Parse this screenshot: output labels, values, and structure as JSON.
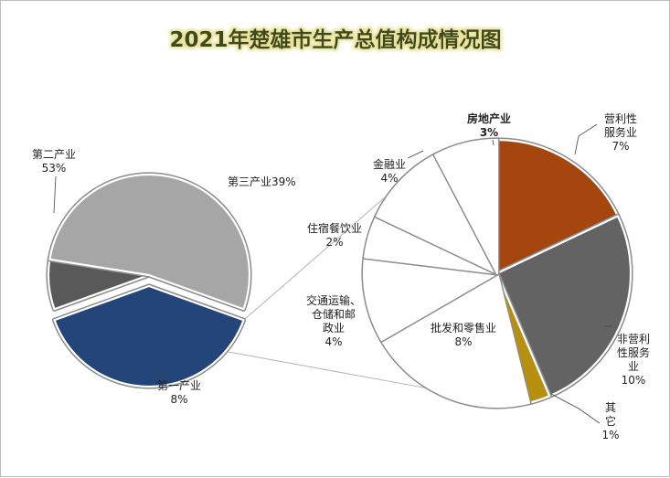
{
  "chart_data": {
    "type": "pie",
    "title": "2021年楚雄市生产总值构成情况图",
    "main_pie": {
      "slices": [
        {
          "name": "第三产业",
          "label_text": "第三产业39%",
          "value": 39,
          "color": "#24457a"
        },
        {
          "name": "第一产业",
          "label_lines": [
            "第一产业",
            "8%"
          ],
          "value": 8,
          "color": "#595959"
        },
        {
          "name": "第二产业",
          "label_lines": [
            "第二产业",
            "53%"
          ],
          "value": 53,
          "color": "#a6a6a6"
        }
      ]
    },
    "breakdown_pie": {
      "parent": "第三产业",
      "slices": [
        {
          "name": "营利性服务业",
          "label_lines": [
            "营利性",
            "服务业",
            "7%"
          ],
          "value": 7,
          "color": "#a5460f"
        },
        {
          "name": "非营利性服务业",
          "label_lines": [
            "非营利",
            "性服务",
            "业",
            "10%"
          ],
          "value": 10,
          "color": "#636363"
        },
        {
          "name": "其它",
          "label_lines": [
            "其",
            "它",
            "1%"
          ],
          "value": 1,
          "color": "#b8900f"
        },
        {
          "name": "批发和零售业",
          "label_lines": [
            "批发和零售业",
            "8%"
          ],
          "value": 8,
          "color": "#ffffff"
        },
        {
          "name": "交通运输、仓储和邮政业",
          "label_lines": [
            "交通运输、",
            "仓储和邮",
            "政业",
            "4%"
          ],
          "value": 4,
          "color": "#ffffff"
        },
        {
          "name": "住宿餐饮业",
          "label_lines": [
            "住宿餐饮业",
            "2%"
          ],
          "value": 2,
          "color": "#ffffff"
        },
        {
          "name": "金融业",
          "label_lines": [
            "金融业",
            "4%"
          ],
          "value": 4,
          "color": "#ffffff"
        },
        {
          "name": "房地产业",
          "label_lines": [
            "房地产业",
            "3%"
          ],
          "value": 3,
          "color": "#ffffff"
        }
      ]
    },
    "legend": "none",
    "colors": {
      "title": "#3f4a1c",
      "title_glow": "#e8e29a",
      "border": "#a0a0a0"
    }
  }
}
